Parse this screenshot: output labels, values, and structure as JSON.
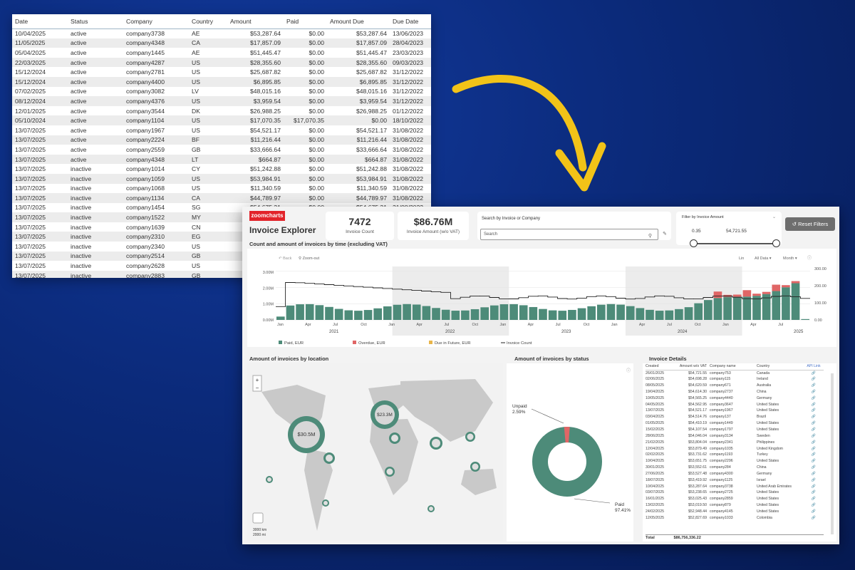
{
  "table": {
    "headers": [
      "Date",
      "Status",
      "Company",
      "Country",
      "Amount",
      "Paid",
      "Amount Due",
      "Due Date"
    ],
    "rows": [
      [
        "10/04/2025",
        "active",
        "company3738",
        "AE",
        "$53,287.64",
        "$0.00",
        "$53,287.64",
        "13/06/2023"
      ],
      [
        "11/05/2025",
        "active",
        "company4348",
        "CA",
        "$17,857.09",
        "$0.00",
        "$17,857.09",
        "28/04/2023"
      ],
      [
        "05/04/2025",
        "active",
        "company1445",
        "AE",
        "$51,445.47",
        "$0.00",
        "$51,445.47",
        "23/03/2023"
      ],
      [
        "22/03/2025",
        "active",
        "company4287",
        "US",
        "$28,355.60",
        "$0.00",
        "$28,355.60",
        "09/03/2023"
      ],
      [
        "15/12/2024",
        "active",
        "company2781",
        "US",
        "$25,687.82",
        "$0.00",
        "$25,687.82",
        "31/12/2022"
      ],
      [
        "15/12/2024",
        "active",
        "company4400",
        "US",
        "$6,895.85",
        "$0.00",
        "$6,895.85",
        "31/12/2022"
      ],
      [
        "07/02/2025",
        "active",
        "company3082",
        "LV",
        "$48,015.16",
        "$0.00",
        "$48,015.16",
        "31/12/2022"
      ],
      [
        "08/12/2024",
        "active",
        "company4376",
        "US",
        "$3,959.54",
        "$0.00",
        "$3,959.54",
        "31/12/2022"
      ],
      [
        "12/01/2025",
        "active",
        "company3544",
        "DK",
        "$26,988.25",
        "$0.00",
        "$26,988.25",
        "01/12/2022"
      ],
      [
        "05/10/2024",
        "active",
        "company1104",
        "US",
        "$17,070.35",
        "$17,070.35",
        "$0.00",
        "18/10/2022"
      ],
      [
        "13/07/2025",
        "active",
        "company1967",
        "US",
        "$54,521.17",
        "$0.00",
        "$54,521.17",
        "31/08/2022"
      ],
      [
        "13/07/2025",
        "active",
        "company2224",
        "BF",
        "$11,216.44",
        "$0.00",
        "$11,216.44",
        "31/08/2022"
      ],
      [
        "13/07/2025",
        "active",
        "company2559",
        "GB",
        "$33,666.64",
        "$0.00",
        "$33,666.64",
        "31/08/2022"
      ],
      [
        "13/07/2025",
        "active",
        "company4348",
        "LT",
        "$664.87",
        "$0.00",
        "$664.87",
        "31/08/2022"
      ],
      [
        "13/07/2025",
        "inactive",
        "company1014",
        "CY",
        "$51,242.88",
        "$0.00",
        "$51,242.88",
        "31/08/2022"
      ],
      [
        "13/07/2025",
        "inactive",
        "company1059",
        "US",
        "$53,984.91",
        "$0.00",
        "$53,984.91",
        "31/08/2022"
      ],
      [
        "13/07/2025",
        "inactive",
        "company1068",
        "US",
        "$11,340.59",
        "$0.00",
        "$11,340.59",
        "31/08/2022"
      ],
      [
        "13/07/2025",
        "inactive",
        "company1134",
        "CA",
        "$44,789.97",
        "$0.00",
        "$44,789.97",
        "31/08/2022"
      ],
      [
        "13/07/2025",
        "inactive",
        "company1454",
        "SG",
        "$54,675.31",
        "$0.00",
        "$54,675.31",
        "31/08/2022"
      ],
      [
        "13/07/2025",
        "inactive",
        "company1522",
        "MY",
        "",
        "",
        "",
        ""
      ],
      [
        "13/07/2025",
        "inactive",
        "company1639",
        "CN",
        "",
        "",
        "",
        ""
      ],
      [
        "13/07/2025",
        "inactive",
        "company2310",
        "EG",
        "",
        "",
        "",
        ""
      ],
      [
        "13/07/2025",
        "inactive",
        "company2340",
        "US",
        "",
        "",
        "",
        ""
      ],
      [
        "13/07/2025",
        "inactive",
        "company2514",
        "GB",
        "",
        "",
        "",
        ""
      ],
      [
        "13/07/2025",
        "inactive",
        "company2628",
        "US",
        "",
        "",
        "",
        ""
      ],
      [
        "13/07/2025",
        "inactive",
        "company2883",
        "GB",
        "",
        "",
        "",
        ""
      ]
    ]
  },
  "dashboard": {
    "logo": "zoomcharts",
    "title": "Invoice Explorer",
    "kpis": [
      {
        "value": "7472",
        "label": "Invoice Count"
      },
      {
        "value": "$86.76M",
        "label": "Invoice Amount (w/o VAT)"
      }
    ],
    "search": {
      "label": "Search by Invoice or Company",
      "placeholder": "Search"
    },
    "filter": {
      "label": "Filter by Invoice Amount",
      "min": "0.35",
      "max": "54,721.55"
    },
    "reset_label": "Reset Filters",
    "chart": {
      "title": "Count and amount of invoices by time (excluding VAT)",
      "toolbar": {
        "back": "Back",
        "zoom_out": "Zoom-out",
        "lin": "Lin",
        "all_data": "All Data",
        "month": "Month"
      },
      "left_ticks": [
        "3.00M",
        "2.00M",
        "1.00M",
        "0.00M"
      ],
      "right_ticks": [
        "300.00",
        "200.00",
        "100.00",
        "0.00"
      ],
      "month_ticks": [
        "Jan",
        "Apr",
        "Jul",
        "Oct",
        "Jan",
        "Apr",
        "Jul",
        "Oct",
        "Jan",
        "Apr",
        "Jul",
        "Oct",
        "Jan",
        "Apr",
        "Jul",
        "Oct",
        "Jan",
        "Apr",
        "Jul"
      ],
      "years": [
        "2021",
        "2022",
        "2023",
        "2024",
        "2025"
      ],
      "legend": [
        "Paid, EUR",
        "Overdue, EUR",
        "Due in Future, EUR",
        "Invoice Count"
      ],
      "colors": {
        "paid": "#4d8b79",
        "overdue": "#e06666",
        "future": "#e8b54a",
        "count": "#222222"
      }
    },
    "map": {
      "title": "Amount of invoices by location",
      "big_label": "$30.5M",
      "second_label": "$23.3M",
      "scale_km": "3000 km",
      "scale_mi": "2000 mi"
    },
    "status": {
      "title": "Amount of invoices by status",
      "unpaid_label": "Unpaid",
      "unpaid_pct": "2.59%",
      "paid_label": "Paid",
      "paid_pct": "97.41%"
    },
    "details": {
      "title": "Invoice Details",
      "headers": [
        "Created",
        "Amount w/o VAT",
        "Company name",
        "Country",
        "API Link"
      ],
      "rows": [
        [
          "26/01/2025",
          "$54,721.55",
          "company753",
          "Canada"
        ],
        [
          "02/06/2025",
          "$54,698.28",
          "company115",
          "Ireland"
        ],
        [
          "08/05/2025",
          "$54,620.59",
          "company671",
          "Australia"
        ],
        [
          "19/04/2025",
          "$54,614.30",
          "company2737",
          "China"
        ],
        [
          "10/05/2025",
          "$54,565.25",
          "company4440",
          "Germany"
        ],
        [
          "04/05/2025",
          "$54,562.95",
          "company3647",
          "United States"
        ],
        [
          "13/07/2025",
          "$54,521.17",
          "company1967",
          "United States"
        ],
        [
          "03/04/2025",
          "$54,514.76",
          "company137",
          "Brazil"
        ],
        [
          "01/05/2025",
          "$54,410.19",
          "company1449",
          "United States"
        ],
        [
          "15/02/2025",
          "$54,107.54",
          "company1797",
          "United States"
        ],
        [
          "28/06/2025",
          "$54,046.04",
          "company3134",
          "Sweden"
        ],
        [
          "21/02/2025",
          "$53,804.04",
          "company2341",
          "Philippines"
        ],
        [
          "12/04/2025",
          "$53,879.49",
          "company1035",
          "United Kingdom"
        ],
        [
          "02/02/2025",
          "$53,731.62",
          "company1193",
          "Turkey"
        ],
        [
          "10/04/2025",
          "$53,651.75",
          "company2296",
          "United States"
        ],
        [
          "30/01/2025",
          "$53,552.61",
          "company284",
          "China"
        ],
        [
          "27/06/2025",
          "$53,527.48",
          "company4300",
          "Germany"
        ],
        [
          "18/07/2025",
          "$53,419.92",
          "company1125",
          "Israel"
        ],
        [
          "10/04/2025",
          "$53,287.64",
          "company3738",
          "United Arab Emirates"
        ],
        [
          "03/07/2025",
          "$53,238.65",
          "company2725",
          "United States"
        ],
        [
          "16/01/2025",
          "$53,025.43",
          "company2859",
          "United States"
        ],
        [
          "13/02/2025",
          "$53,019.50",
          "company879",
          "United States"
        ],
        [
          "24/02/2025",
          "$52,948.44",
          "company4145",
          "United States"
        ],
        [
          "12/05/2025",
          "$52,827.69",
          "company1033",
          "Colombia"
        ]
      ],
      "total_label": "Total",
      "total_value": "$86,756,336.22"
    }
  }
}
